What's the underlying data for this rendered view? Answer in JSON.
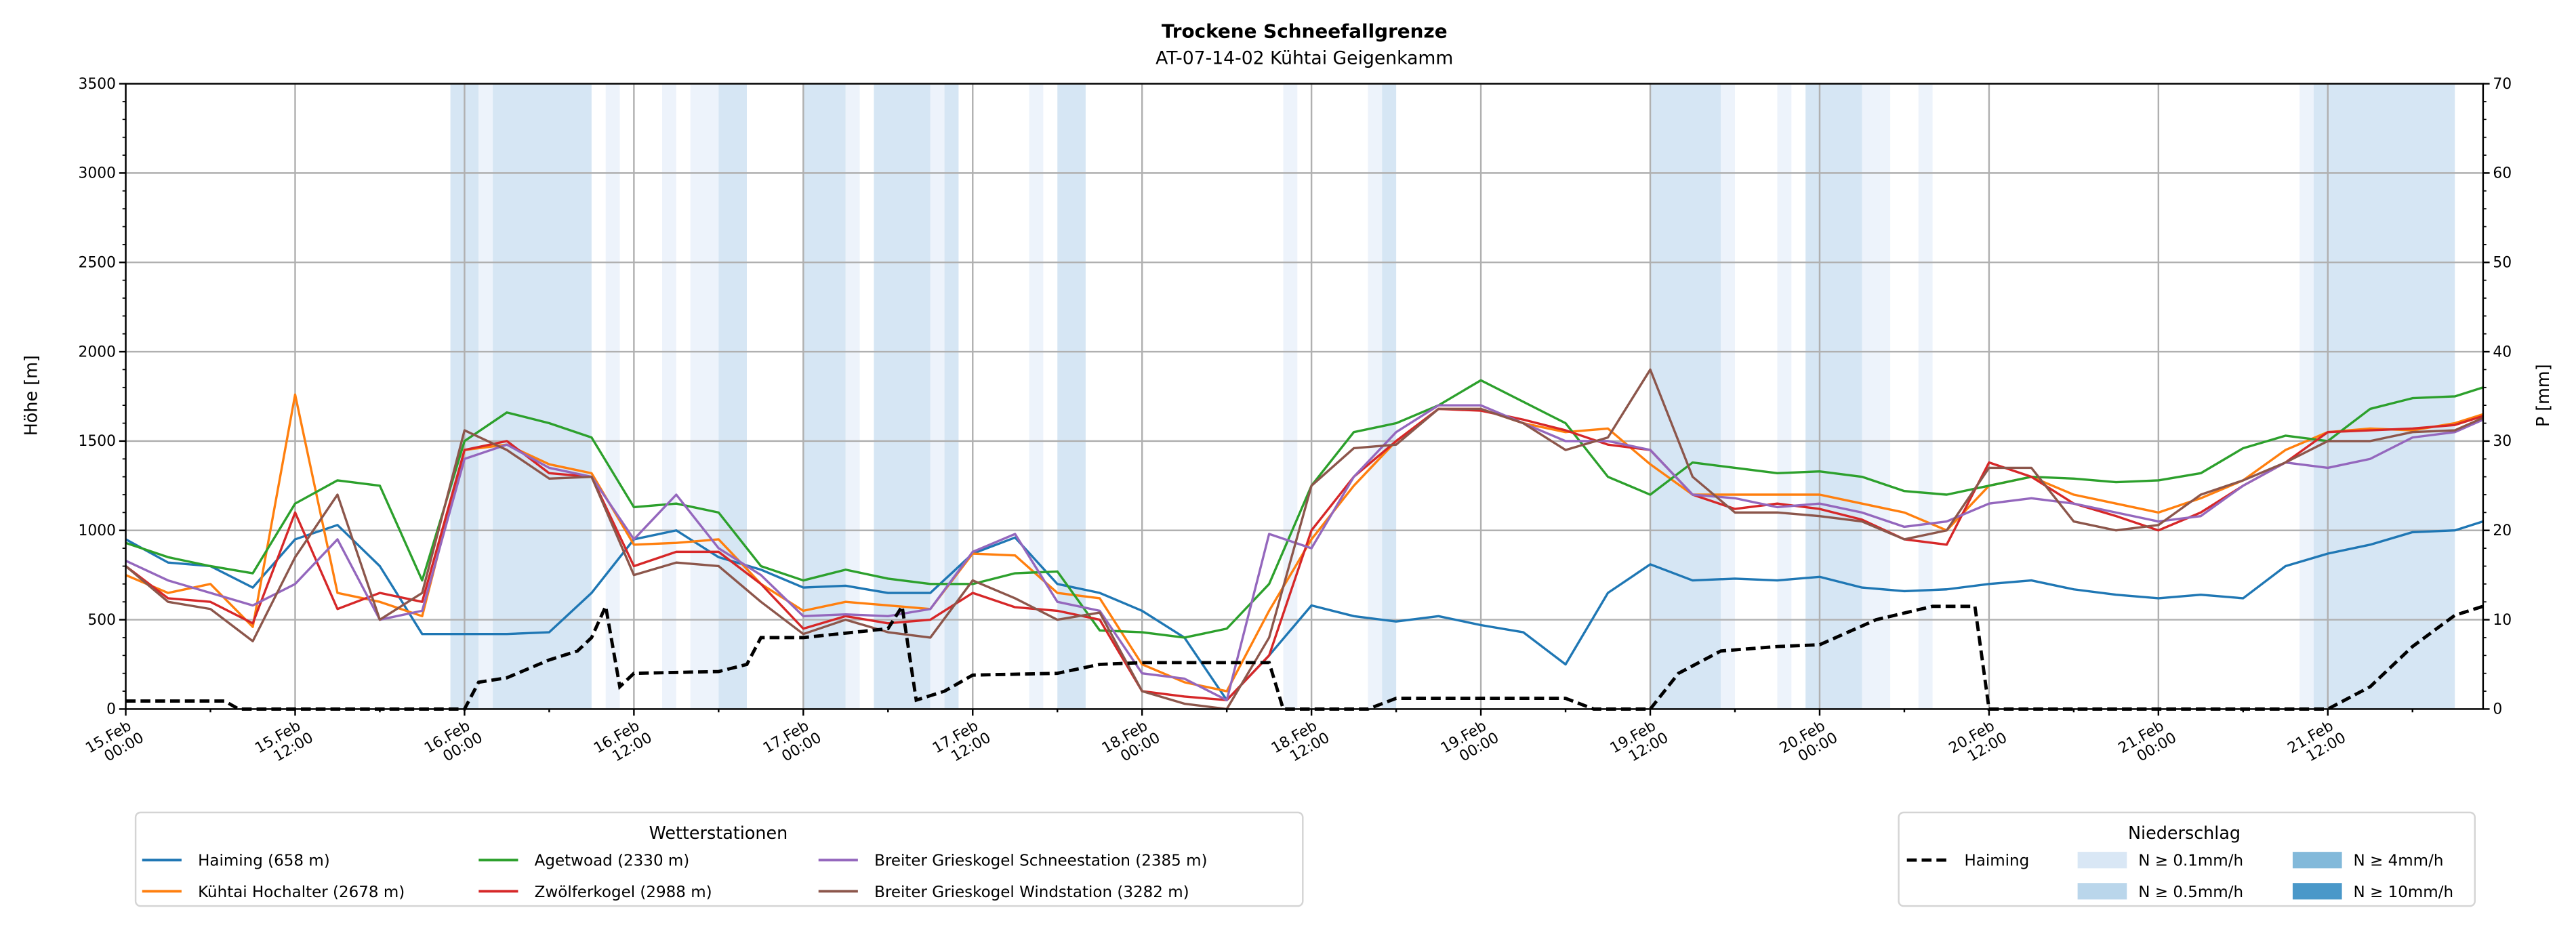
{
  "chart_data": {
    "type": "line",
    "title": "Trockene Schneefallgrenze",
    "subtitle": "AT-07-14-02 Kühtai Geigenkamm",
    "ylabel": "Höhe [m]",
    "y2label": "P [mm]",
    "ylim": [
      0,
      3500
    ],
    "y2lim": [
      0,
      70
    ],
    "yticks": [
      "0",
      "500",
      "1000",
      "1500",
      "2000",
      "2500",
      "3000",
      "3500"
    ],
    "y2ticks": [
      "0",
      "10",
      "20",
      "30",
      "40",
      "50",
      "60",
      "70"
    ],
    "x_unit": "hours since 15.Feb 00:00",
    "xlim": [
      0,
      167
    ],
    "xticks": [
      [
        "15.Feb",
        "00:00"
      ],
      [
        "15.Feb",
        "12:00"
      ],
      [
        "16.Feb",
        "00:00"
      ],
      [
        "16.Feb",
        "12:00"
      ],
      [
        "17.Feb",
        "00:00"
      ],
      [
        "17.Feb",
        "12:00"
      ],
      [
        "18.Feb",
        "00:00"
      ],
      [
        "18.Feb",
        "12:00"
      ],
      [
        "19.Feb",
        "00:00"
      ],
      [
        "19.Feb",
        "12:00"
      ],
      [
        "20.Feb",
        "00:00"
      ],
      [
        "20.Feb",
        "12:00"
      ],
      [
        "21.Feb",
        "00:00"
      ],
      [
        "21.Feb",
        "12:00"
      ]
    ],
    "grid": true,
    "x_step_hours": 3,
    "series": [
      {
        "name": "Haiming (658 m)",
        "color": "#1f77b4",
        "values": [
          950,
          820,
          800,
          680,
          950,
          1030,
          800,
          420,
          420,
          420,
          430,
          650,
          950,
          1000,
          850,
          780,
          680,
          690,
          650,
          650,
          870,
          960,
          700,
          650,
          550,
          400,
          50,
          300,
          580,
          520,
          490,
          520,
          470,
          430,
          250,
          650,
          810,
          720,
          730,
          720,
          740,
          680,
          660,
          670,
          700,
          720,
          670,
          640,
          620,
          640,
          620,
          800,
          870,
          920,
          990,
          1000,
          1050
        ]
      },
      {
        "name": "Kühtai Hochalter (2678 m)",
        "color": "#ff7f0e",
        "values": [
          750,
          650,
          700,
          460,
          1760,
          650,
          600,
          520,
          1450,
          1480,
          1370,
          1320,
          920,
          930,
          950,
          700,
          550,
          600,
          580,
          560,
          870,
          860,
          650,
          620,
          250,
          150,
          100,
          550,
          950,
          1250,
          1500,
          1680,
          1680,
          1600,
          1550,
          1570,
          1370,
          1200,
          1200,
          1200,
          1200,
          1150,
          1100,
          1000,
          1250,
          1300,
          1200,
          1150,
          1100,
          1180,
          1280,
          1450,
          1550,
          1570,
          1560,
          1600,
          1650
        ]
      },
      {
        "name": "Agetwoad (2330 m)",
        "color": "#2ca02c",
        "values": [
          930,
          850,
          800,
          760,
          1150,
          1280,
          1250,
          720,
          1500,
          1660,
          1600,
          1520,
          1130,
          1150,
          1100,
          800,
          720,
          780,
          730,
          700,
          700,
          760,
          770,
          440,
          430,
          400,
          450,
          700,
          1250,
          1550,
          1600,
          1700,
          1840,
          1720,
          1600,
          1300,
          1200,
          1380,
          1350,
          1320,
          1330,
          1300,
          1220,
          1200,
          1250,
          1300,
          1290,
          1270,
          1280,
          1320,
          1460,
          1530,
          1500,
          1680,
          1740,
          1750,
          1800
        ]
      },
      {
        "name": "Zwölferkogel (2988 m)",
        "color": "#d62728",
        "values": [
          800,
          620,
          600,
          480,
          1100,
          560,
          650,
          600,
          1450,
          1500,
          1320,
          1300,
          800,
          880,
          880,
          700,
          450,
          520,
          480,
          500,
          650,
          570,
          550,
          500,
          100,
          70,
          50,
          300,
          1000,
          1300,
          1500,
          1680,
          1670,
          1620,
          1560,
          1480,
          1450,
          1200,
          1120,
          1150,
          1120,
          1060,
          950,
          920,
          1380,
          1300,
          1150,
          1080,
          1000,
          1100,
          1250,
          1380,
          1550,
          1560,
          1570,
          1590,
          1640
        ]
      },
      {
        "name": "Breiter Grieskogel Schneestation (2385 m)",
        "color": "#9467bd",
        "values": [
          830,
          720,
          650,
          580,
          700,
          950,
          500,
          550,
          1400,
          1480,
          1350,
          1300,
          950,
          1200,
          900,
          750,
          520,
          530,
          520,
          560,
          880,
          980,
          600,
          550,
          200,
          170,
          50,
          980,
          900,
          1300,
          1550,
          1700,
          1700,
          1600,
          1500,
          1500,
          1450,
          1200,
          1180,
          1130,
          1150,
          1100,
          1020,
          1050,
          1150,
          1180,
          1150,
          1100,
          1050,
          1080,
          1250,
          1380,
          1350,
          1400,
          1520,
          1550,
          1620
        ]
      },
      {
        "name": "Breiter Grieskogel Windstation (3282 m)",
        "color": "#8c564b",
        "values": [
          800,
          600,
          560,
          380,
          850,
          1200,
          500,
          650,
          1560,
          1450,
          1290,
          1300,
          750,
          820,
          800,
          600,
          420,
          500,
          430,
          400,
          720,
          620,
          500,
          540,
          100,
          30,
          0,
          400,
          1250,
          1460,
          1480,
          1680,
          1680,
          1600,
          1450,
          1520,
          1900,
          1300,
          1100,
          1100,
          1080,
          1050,
          950,
          1000,
          1350,
          1350,
          1050,
          1000,
          1030,
          1200,
          1280,
          1380,
          1500,
          1500,
          1550,
          1560,
          1630
        ]
      }
    ],
    "precip_series": {
      "name": "Haiming",
      "axis": "right",
      "color": "#000000",
      "points": [
        [
          0,
          0.9
        ],
        [
          7,
          0.9
        ],
        [
          8,
          0
        ],
        [
          24,
          0
        ],
        [
          25,
          3
        ],
        [
          27,
          3.5
        ],
        [
          30,
          5.5
        ],
        [
          32,
          6.5
        ],
        [
          33,
          8
        ],
        [
          34,
          11.5
        ],
        [
          35,
          2.5
        ],
        [
          36,
          4
        ],
        [
          42,
          4.2
        ],
        [
          44,
          5
        ],
        [
          45,
          8
        ],
        [
          48,
          8
        ],
        [
          51,
          8.5
        ],
        [
          54,
          9
        ],
        [
          55,
          11.5
        ],
        [
          56,
          1
        ],
        [
          58,
          2
        ],
        [
          60,
          3.8
        ],
        [
          66,
          4
        ],
        [
          69,
          5
        ],
        [
          72,
          5.2
        ],
        [
          81,
          5.2
        ],
        [
          82,
          0
        ],
        [
          88,
          0
        ],
        [
          90,
          1.2
        ],
        [
          102,
          1.2
        ],
        [
          104,
          0
        ],
        [
          108,
          0
        ],
        [
          110,
          4
        ],
        [
          113,
          6.5
        ],
        [
          117,
          7
        ],
        [
          120,
          7.2
        ],
        [
          124,
          10
        ],
        [
          128,
          11.5
        ],
        [
          131,
          11.5
        ],
        [
          132,
          0
        ],
        [
          156,
          0
        ],
        [
          159,
          2.5
        ],
        [
          162,
          7
        ],
        [
          165,
          10.5
        ],
        [
          167,
          11.5
        ]
      ]
    },
    "precip_bands": [
      [
        23,
        25,
        "0.5"
      ],
      [
        25,
        26,
        "0.1"
      ],
      [
        26,
        33,
        "0.5"
      ],
      [
        34,
        35,
        "0.1"
      ],
      [
        38,
        39,
        "0.1"
      ],
      [
        40,
        42,
        "0.1"
      ],
      [
        42,
        44,
        "0.5"
      ],
      [
        48,
        51,
        "0.5"
      ],
      [
        51,
        52,
        "0.1"
      ],
      [
        53,
        57,
        "0.5"
      ],
      [
        57,
        58,
        "0.1"
      ],
      [
        58,
        59,
        "0.5"
      ],
      [
        64,
        65,
        "0.1"
      ],
      [
        66,
        68,
        "0.5"
      ],
      [
        82,
        83,
        "0.1"
      ],
      [
        88,
        89,
        "0.1"
      ],
      [
        89,
        90,
        "0.5"
      ],
      [
        108,
        113,
        "0.5"
      ],
      [
        113,
        114,
        "0.1"
      ],
      [
        117,
        118,
        "0.1"
      ],
      [
        119,
        123,
        "0.5"
      ],
      [
        123,
        125,
        "0.1"
      ],
      [
        127,
        128,
        "0.1"
      ],
      [
        154,
        155,
        "0.1"
      ],
      [
        155,
        165,
        "0.5"
      ]
    ],
    "legend_stations": {
      "title": "Wetterstationen",
      "placement": "bottom-left"
    },
    "legend_precip": {
      "title": "Niederschlag",
      "placement": "bottom-right",
      "line_label": "Haiming",
      "levels": [
        {
          "key": "0.1",
          "label": "N ≥ 0.1mm/h",
          "color": "#d9e7f5"
        },
        {
          "key": "0.5",
          "label": "N ≥ 0.5mm/h",
          "color": "#bad6eb"
        },
        {
          "key": "4",
          "label": "N ≥ 4mm/h",
          "color": "#82b9da"
        },
        {
          "key": "10",
          "label": "N ≥ 10mm/h",
          "color": "#4a98c9"
        }
      ]
    },
    "band_colors": {
      "0.1": "#edf3fb",
      "0.5": "#d6e6f4"
    }
  }
}
